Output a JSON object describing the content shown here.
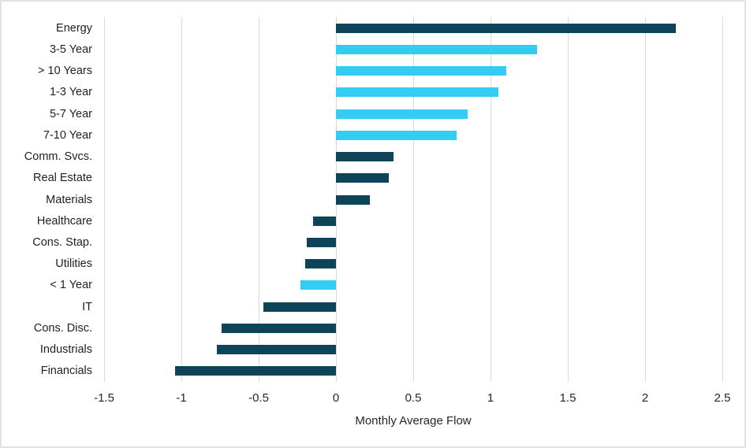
{
  "figure": {
    "background": "#ffffff",
    "border_color": "#e3e3e3",
    "grid_color": "#d9d9d9",
    "text_color": "#262626"
  },
  "chart_data": {
    "type": "bar",
    "orientation": "horizontal",
    "title": "",
    "xlabel": "Monthly Average Flow",
    "ylabel": "",
    "xlim": [
      -1.5,
      2.5
    ],
    "xticks": [
      -1.5,
      -1,
      -0.5,
      0,
      0.5,
      1,
      1.5,
      2,
      2.5
    ],
    "xtick_labels": [
      "-1.5",
      "-1",
      "-0.5",
      "0",
      "0.5",
      "1",
      "1.5",
      "2",
      "2.5"
    ],
    "grid": "vertical",
    "legend": "none",
    "group_colors": {
      "sector": "#0e4459",
      "maturity": "#33ccf2"
    },
    "categories": [
      "Energy",
      "3-5 Year",
      "> 10 Years",
      "1-3 Year",
      "5-7 Year",
      "7-10 Year",
      "Comm. Svcs.",
      "Real Estate",
      "Materials",
      "Healthcare",
      "Cons. Stap.",
      "Utilities",
      "< 1 Year",
      "IT",
      "Cons. Disc.",
      "Industrials",
      "Financials"
    ],
    "values": [
      2.2,
      1.3,
      1.1,
      1.05,
      0.85,
      0.78,
      0.37,
      0.34,
      0.22,
      -0.15,
      -0.19,
      -0.2,
      -0.23,
      -0.47,
      -0.74,
      -0.77,
      -1.04
    ],
    "groups": [
      "sector",
      "maturity",
      "maturity",
      "maturity",
      "maturity",
      "maturity",
      "sector",
      "sector",
      "sector",
      "sector",
      "sector",
      "sector",
      "maturity",
      "sector",
      "sector",
      "sector",
      "sector"
    ]
  }
}
